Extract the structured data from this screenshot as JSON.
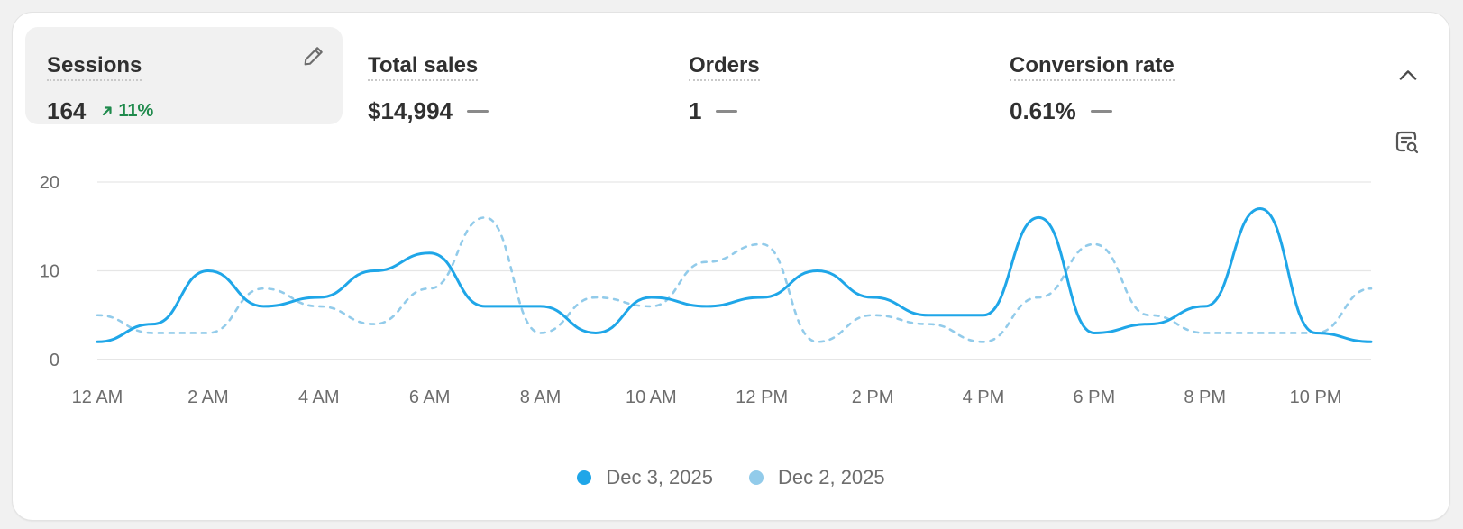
{
  "metrics": [
    {
      "label": "Sessions",
      "value": "164",
      "delta": "11%",
      "active": true
    },
    {
      "label": "Total sales",
      "value": "$14,994"
    },
    {
      "label": "Orders",
      "value": "1"
    },
    {
      "label": "Conversion rate",
      "value": "0.61%"
    }
  ],
  "icons": {
    "edit": "pencil-icon",
    "collapse": "chevron-up-icon",
    "insight": "chart-insight-icon",
    "delta": "arrow-up-right-icon"
  },
  "colors": {
    "primary_series": "#1fa6e8",
    "comparison_series": "#92cbea",
    "positive_delta": "#1f8a4c"
  },
  "chart_data": {
    "type": "line",
    "x": [
      "12 AM",
      "1 AM",
      "2 AM",
      "3 AM",
      "4 AM",
      "5 AM",
      "6 AM",
      "7 AM",
      "8 AM",
      "9 AM",
      "10 AM",
      "11 AM",
      "12 PM",
      "1 PM",
      "2 PM",
      "3 PM",
      "4 PM",
      "5 PM",
      "6 PM",
      "7 PM",
      "8 PM",
      "9 PM",
      "10 PM",
      "11 PM"
    ],
    "tick_labels": [
      "12 AM",
      "2 AM",
      "4 AM",
      "6 AM",
      "8 AM",
      "10 AM",
      "12 PM",
      "2 PM",
      "4 PM",
      "6 PM",
      "8 PM",
      "10 PM"
    ],
    "y_ticks": [
      0,
      10,
      20
    ],
    "ylim": [
      0,
      20
    ],
    "grid": true,
    "legend_position": "bottom-center",
    "series": [
      {
        "name": "Dec 3, 2025",
        "style": "solid",
        "values": [
          2,
          4,
          10,
          6,
          7,
          10,
          12,
          6,
          6,
          3,
          7,
          6,
          7,
          10,
          7,
          5,
          5,
          16,
          3,
          4,
          6,
          17,
          3,
          2
        ]
      },
      {
        "name": "Dec 2, 2025",
        "style": "dashed",
        "values": [
          5,
          3,
          3,
          8,
          6,
          4,
          8,
          16,
          3,
          7,
          6,
          11,
          13,
          2,
          5,
          4,
          2,
          7,
          13,
          5,
          3,
          3,
          3,
          8
        ]
      }
    ]
  }
}
